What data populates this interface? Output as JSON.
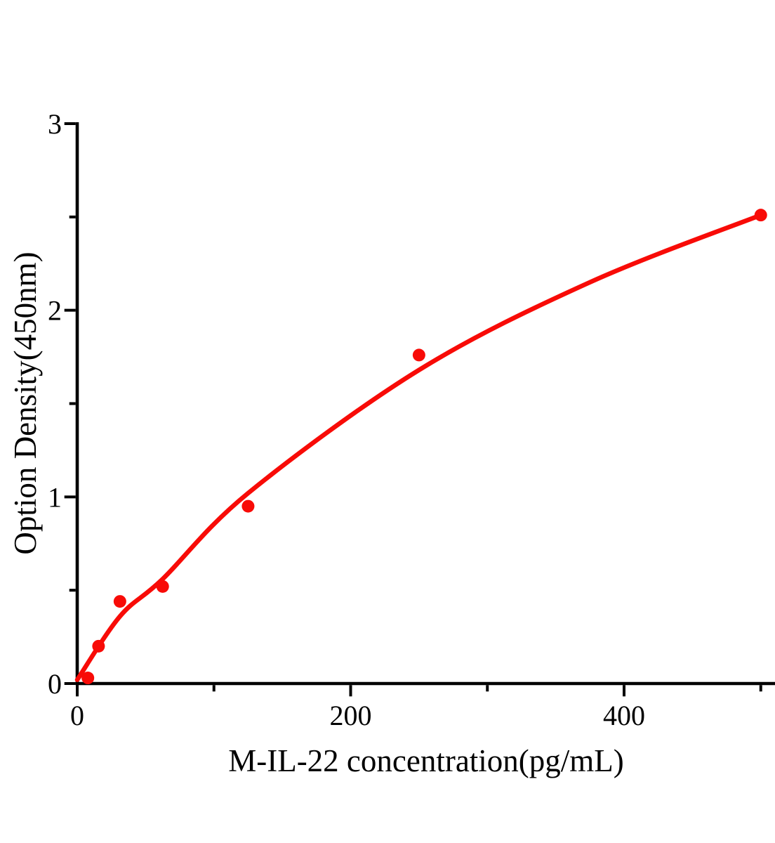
{
  "chart_data": {
    "type": "scatter",
    "title": "",
    "xlabel": "M-IL-22 concentration(pg/mL)",
    "ylabel": "Option Density(450nm)",
    "xlim": [
      0,
      510
    ],
    "ylim": [
      0,
      3
    ],
    "x_ticks_major": [
      0,
      200,
      400
    ],
    "x_ticks_minor": [
      100,
      300,
      500
    ],
    "y_ticks_major": [
      0,
      1,
      2,
      3
    ],
    "y_ticks_minor": [
      0.5,
      1.5,
      2.5
    ],
    "grid": "off",
    "legend": "none",
    "points": [
      {
        "x": 7.8,
        "y": 0.03
      },
      {
        "x": 15.6,
        "y": 0.2
      },
      {
        "x": 31.25,
        "y": 0.44
      },
      {
        "x": 62.5,
        "y": 0.52
      },
      {
        "x": 125,
        "y": 0.95
      },
      {
        "x": 250,
        "y": 1.76
      },
      {
        "x": 500,
        "y": 2.51
      }
    ],
    "fit_curve": [
      [
        0,
        0.02
      ],
      [
        31.25,
        0.36
      ],
      [
        62.5,
        0.56
      ],
      [
        125,
        1.02
      ],
      [
        250,
        1.68
      ],
      [
        375,
        2.15
      ],
      [
        500,
        2.51
      ]
    ],
    "colors": {
      "series": "#f80b07",
      "axis": "#000000",
      "background": "#ffffff"
    }
  }
}
